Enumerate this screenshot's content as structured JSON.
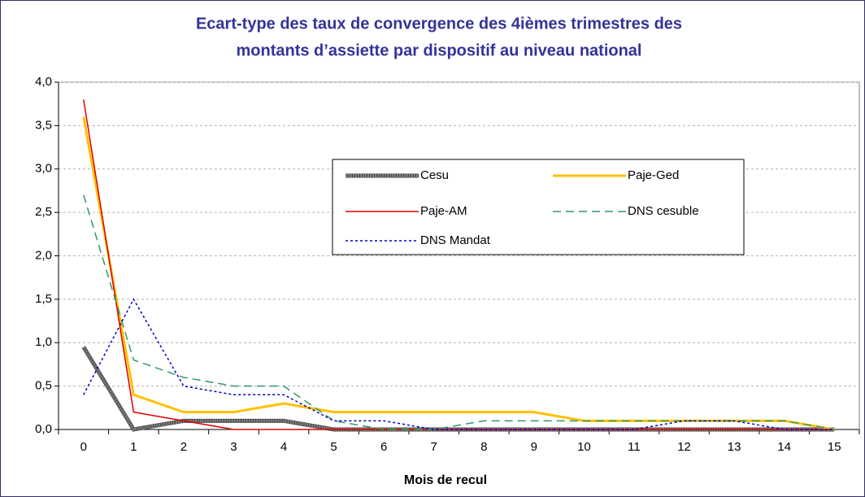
{
  "chart_data": {
    "type": "line",
    "title": [
      "Ecart-type des taux de convergence des 4ièmes trimestres des",
      "montants d’assiette par dispositif au niveau national"
    ],
    "x_label": "Mois de recul",
    "categories": [
      "0",
      "1",
      "2",
      "3",
      "4",
      "5",
      "6",
      "7",
      "8",
      "9",
      "10",
      "11",
      "12",
      "13",
      "14",
      "15"
    ],
    "ylim": [
      0,
      4
    ],
    "yticks": [
      {
        "value": 0,
        "label": "0,0"
      },
      {
        "value": 0.5,
        "label": "0,5"
      },
      {
        "value": 1,
        "label": "1,0"
      },
      {
        "value": 1.5,
        "label": "1,5"
      },
      {
        "value": 2,
        "label": "2,0"
      },
      {
        "value": 2.5,
        "label": "2,5"
      },
      {
        "value": 3,
        "label": "3,0"
      },
      {
        "value": 3.5,
        "label": "3,5"
      },
      {
        "value": 4,
        "label": "4,0"
      }
    ],
    "grid": true,
    "series": [
      {
        "name": "Cesu",
        "color": "#808080",
        "width": 4,
        "dash": "2 1",
        "values": [
          0.95,
          0,
          0.1,
          0.1,
          0.1,
          0,
          0,
          0,
          0,
          0,
          0,
          0,
          0,
          0,
          0,
          0
        ]
      },
      {
        "name": "Paje-Ged",
        "color": "#ffc000",
        "width": 3,
        "dash": "none",
        "values": [
          3.6,
          0.4,
          0.2,
          0.2,
          0.3,
          0.2,
          0.2,
          0.2,
          0.2,
          0.2,
          0.1,
          0.1,
          0.1,
          0.1,
          0.1,
          0
        ]
      },
      {
        "name": "Paje-AM",
        "color": "#e00000",
        "width": 1.5,
        "dash": "none",
        "values": [
          3.8,
          0.2,
          0.1,
          0,
          0,
          0,
          0,
          0,
          0,
          0,
          0,
          0,
          0,
          0,
          0,
          0
        ]
      },
      {
        "name": "DNS cesuble",
        "color": "#339966",
        "width": 1.5,
        "dash": "10 6",
        "values": [
          2.7,
          0.8,
          0.6,
          0.5,
          0.5,
          0.1,
          0,
          0,
          0.1,
          0.1,
          0.1,
          0.1,
          0.1,
          0.1,
          0.1,
          0
        ]
      },
      {
        "name": "DNS Mandat",
        "color": "#0000cc",
        "width": 1.5,
        "dash": "3 3",
        "values": [
          0.4,
          1.5,
          0.5,
          0.4,
          0.4,
          0.1,
          0.1,
          0,
          0,
          0,
          0,
          0,
          0.1,
          0.1,
          0,
          0
        ]
      }
    ]
  }
}
